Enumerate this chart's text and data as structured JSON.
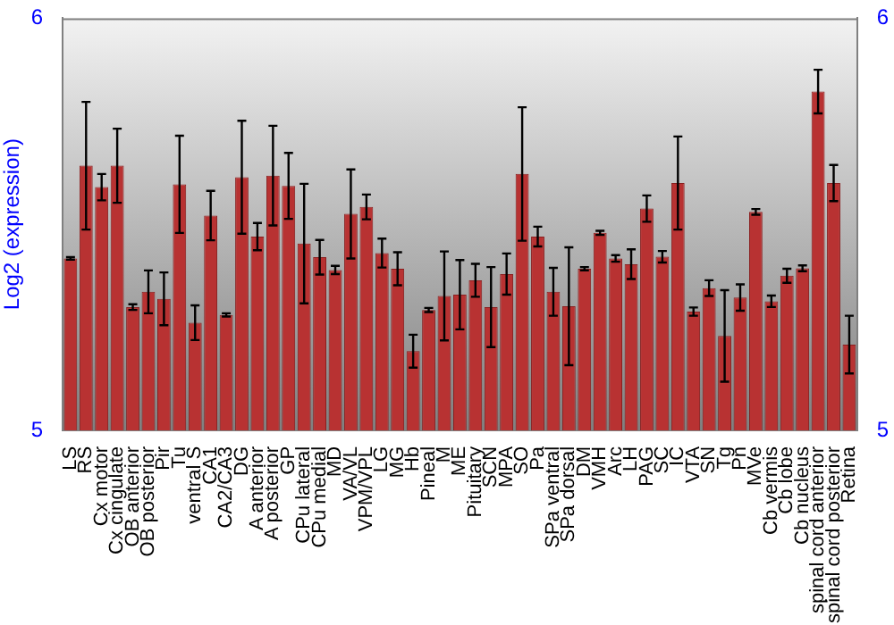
{
  "chart_data": {
    "type": "bar",
    "ylabel": "Log2 (expression)",
    "categories": [
      "LS",
      "RS",
      "Cx motor",
      "Cx cingulate",
      "OB anterior",
      "OB posterior",
      "Pir",
      "Tu",
      "ventral S",
      "CA1",
      "CA2/CA3",
      "DG",
      "A anterior",
      "A posterior",
      "GP",
      "CPu lateral",
      "CPu medial",
      "MD",
      "VA/VL",
      "VPM/VPL",
      "LG",
      "MG",
      "Hb",
      "Pineal",
      "M",
      "ME",
      "Pituitary",
      "SCN",
      "MPA",
      "SO",
      "Pa",
      "SPa ventral",
      "SPa dorsal",
      "DM",
      "VMH",
      "Arc",
      "LH",
      "PAG",
      "SC",
      "IC",
      "VTA",
      "SN",
      "Tg",
      "Pn",
      "MVe",
      "Cb vermis",
      "Cb lobe",
      "Cb nucleus",
      "spinal cord anterior",
      "spinal cord posterior",
      "Retina"
    ],
    "values": [
      5.417,
      5.642,
      5.59,
      5.642,
      5.299,
      5.336,
      5.319,
      5.597,
      5.261,
      5.521,
      5.28,
      5.614,
      5.47,
      5.618,
      5.593,
      5.453,
      5.42,
      5.389,
      5.525,
      5.542,
      5.43,
      5.392,
      5.192,
      5.292,
      5.326,
      5.329,
      5.364,
      5.299,
      5.379,
      5.622,
      5.47,
      5.336,
      5.301,
      5.392,
      5.479,
      5.417,
      5.403,
      5.538,
      5.421,
      5.6,
      5.288,
      5.345,
      5.229,
      5.322,
      5.53,
      5.313,
      5.375,
      5.393,
      5.822,
      5.6,
      5.208
    ],
    "errors": [
      0.003,
      0.155,
      0.032,
      0.09,
      0.007,
      0.052,
      0.064,
      0.118,
      0.042,
      0.06,
      0.004,
      0.137,
      0.033,
      0.121,
      0.08,
      0.145,
      0.042,
      0.01,
      0.108,
      0.03,
      0.035,
      0.04,
      0.04,
      0.005,
      0.108,
      0.084,
      0.04,
      0.097,
      0.05,
      0.162,
      0.024,
      0.058,
      0.143,
      0.004,
      0.005,
      0.008,
      0.036,
      0.032,
      0.014,
      0.113,
      0.01,
      0.019,
      0.111,
      0.032,
      0.007,
      0.014,
      0.017,
      0.007,
      0.053,
      0.044,
      0.07
    ],
    "color": "#b83232",
    "ylim": [
      5,
      6
    ],
    "yticks": [
      5,
      6
    ],
    "y2lim": [
      5,
      6
    ],
    "y2ticks": [
      5,
      6
    ]
  }
}
